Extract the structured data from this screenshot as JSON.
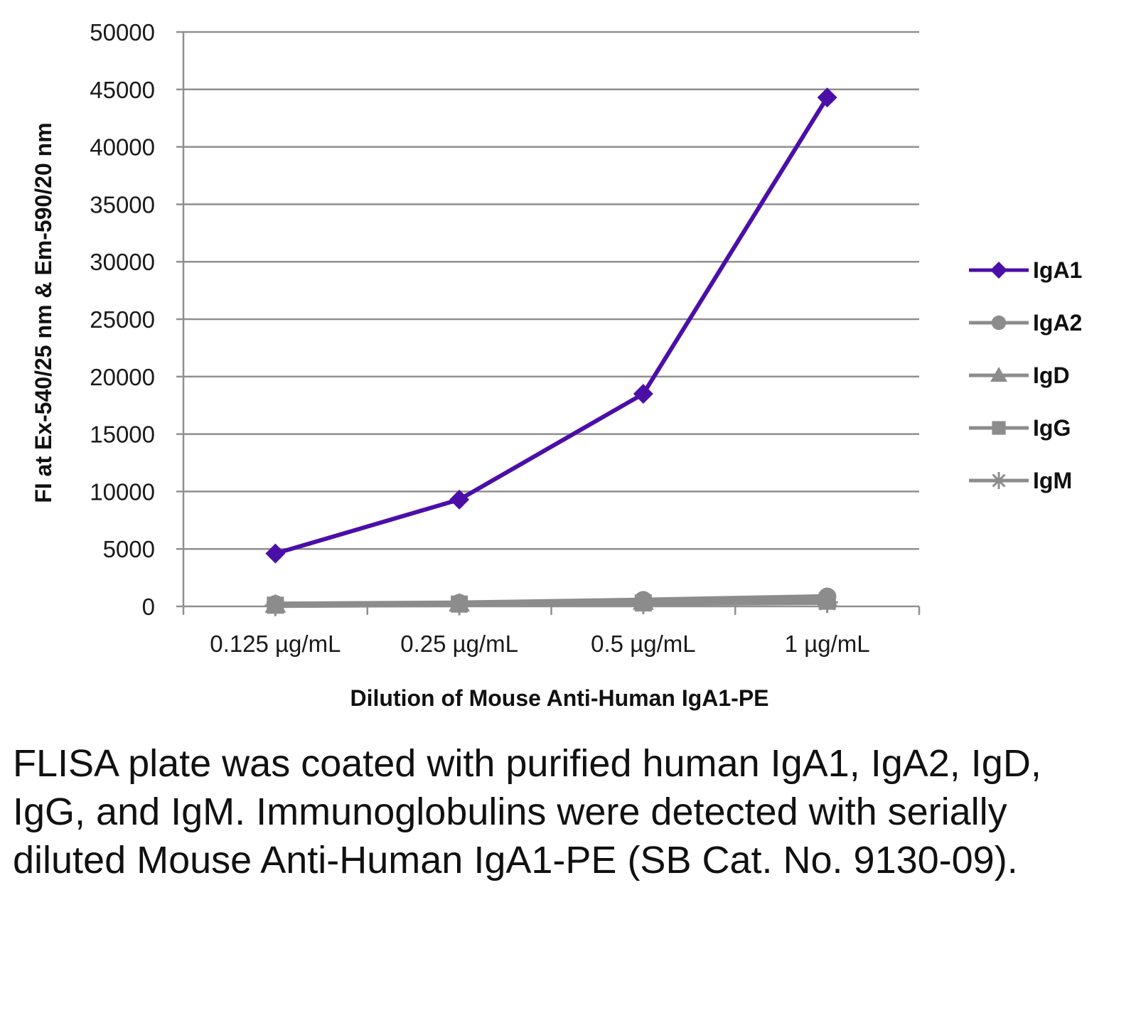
{
  "chart_data": {
    "type": "line",
    "categories": [
      "0.125 µg/mL",
      "0.25 µg/mL",
      "0.5 µg/mL",
      "1 µg/mL"
    ],
    "xlabel": "Dilution of Mouse Anti-Human IgA1-PE",
    "ylabel": "FI at Ex-540/25 nm & Em-590/20 nm",
    "ylim": [
      0,
      50000
    ],
    "yticks": [
      0,
      5000,
      10000,
      15000,
      20000,
      25000,
      30000,
      35000,
      40000,
      45000,
      50000
    ],
    "grid": true,
    "legend_position": "right",
    "series": [
      {
        "name": "IgA1",
        "values": [
          4600,
          9300,
          18500,
          44300
        ],
        "color": "#4b0fa8",
        "marker": "diamond"
      },
      {
        "name": "IgA2",
        "values": [
          200,
          300,
          550,
          850
        ],
        "color": "#8c8c8c",
        "marker": "circle"
      },
      {
        "name": "IgD",
        "values": [
          150,
          250,
          400,
          650
        ],
        "color": "#8c8c8c",
        "marker": "triangle"
      },
      {
        "name": "IgG",
        "values": [
          100,
          200,
          300,
          450
        ],
        "color": "#8c8c8c",
        "marker": "square"
      },
      {
        "name": "IgM",
        "values": [
          80,
          150,
          250,
          350
        ],
        "color": "#8c8c8c",
        "marker": "star"
      }
    ]
  },
  "caption": "FLISA plate was coated with purified human IgA1, IgA2, IgD, IgG, and IgM. Immunoglobulins were detected with serially diluted Mouse Anti-Human IgA1-PE (SB Cat. No. 9130-09)."
}
